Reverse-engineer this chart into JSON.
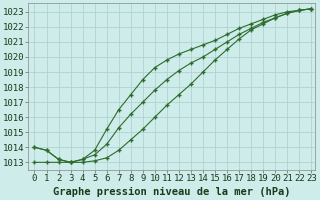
{
  "xlabel": "Graphe pression niveau de la mer (hPa)",
  "background_color": "#ceecea",
  "grid_color": "#aacfcc",
  "line_color": "#2d6b2d",
  "xlim_min": -0.5,
  "xlim_max": 23.3,
  "ylim_min": 1012.5,
  "ylim_max": 1023.6,
  "xticks": [
    0,
    1,
    2,
    3,
    4,
    5,
    6,
    7,
    8,
    9,
    10,
    11,
    12,
    13,
    14,
    15,
    16,
    17,
    18,
    19,
    20,
    21,
    22,
    23
  ],
  "yticks": [
    1013,
    1014,
    1015,
    1016,
    1017,
    1018,
    1019,
    1020,
    1021,
    1022,
    1023
  ],
  "line1_x": [
    0,
    1,
    2,
    3,
    4,
    5,
    6,
    7,
    8,
    9,
    10,
    11,
    12,
    13,
    14,
    15,
    16,
    17,
    18,
    19,
    20,
    21,
    22,
    23
  ],
  "line1_y": [
    1014.0,
    1013.8,
    1013.2,
    1013.0,
    1013.0,
    1013.1,
    1013.3,
    1013.8,
    1014.5,
    1015.2,
    1016.0,
    1016.8,
    1017.5,
    1018.2,
    1019.0,
    1019.8,
    1020.5,
    1021.2,
    1021.8,
    1022.2,
    1022.6,
    1022.9,
    1023.1,
    1023.2
  ],
  "line2_x": [
    0,
    1,
    2,
    3,
    4,
    5,
    6,
    7,
    8,
    9,
    10,
    11,
    12,
    13,
    14,
    15,
    16,
    17,
    18,
    19,
    20,
    21,
    22,
    23
  ],
  "line2_y": [
    1014.0,
    1013.8,
    1013.2,
    1013.0,
    1013.2,
    1013.8,
    1015.2,
    1016.5,
    1017.5,
    1018.5,
    1019.3,
    1019.8,
    1020.2,
    1020.5,
    1020.8,
    1021.1,
    1021.5,
    1021.9,
    1022.2,
    1022.5,
    1022.8,
    1023.0,
    1023.1,
    1023.2
  ],
  "line3_x": [
    0,
    1,
    2,
    3,
    4,
    5,
    6,
    7,
    8,
    9,
    10,
    11,
    12,
    13,
    14,
    15,
    16,
    17,
    18,
    19,
    20,
    21,
    22,
    23
  ],
  "line3_y": [
    1013.0,
    1013.0,
    1013.0,
    1013.0,
    1013.2,
    1013.5,
    1014.2,
    1015.3,
    1016.2,
    1017.0,
    1017.8,
    1018.5,
    1019.1,
    1019.6,
    1020.0,
    1020.5,
    1021.0,
    1021.5,
    1021.9,
    1022.3,
    1022.6,
    1022.9,
    1023.1,
    1023.2
  ],
  "marker": "+",
  "markersize": 3.5,
  "markeredgewidth": 1.0,
  "linewidth": 0.8,
  "fontsize_xlabel": 7.5,
  "fontsize_yticks": 6.5,
  "fontsize_xticks": 6.5
}
